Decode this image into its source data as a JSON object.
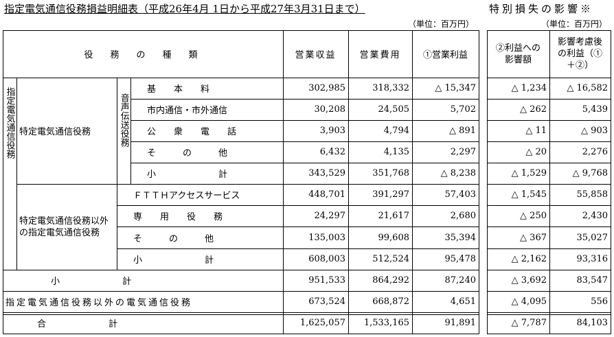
{
  "title": "指定電気通信役務損益明細表（平成26年4月 1日から平成27年3月31日まで）",
  "title_right": "特別損失の影響※",
  "unit_left": "（単位：百万円）",
  "unit_right": "（単位：百万円）",
  "headers": {
    "type": "役　務　の　種　類",
    "revenue": "営業収益",
    "expense": "営業費用",
    "profit": "①営業利益",
    "impact": "②利益への影響額",
    "after": "影響考慮後の利益（①＋②）"
  },
  "labels": {
    "left_group": "指定電気通信役務",
    "group1": "特定電気通信役務",
    "group2": "特定電気通信役務以外の指定電気通信役務",
    "voice": "音声伝送役務"
  },
  "rows": [
    {
      "label": "基　　本　　料",
      "revenue": "302,985",
      "expense": "318,332",
      "profit": "△ 15,347",
      "impact": "△ 1,234",
      "after": "△ 16,582"
    },
    {
      "label": "市内通信・市外通信",
      "revenue": "30,208",
      "expense": "24,505",
      "profit": "5,702",
      "impact": "△ 262",
      "after": "5,439"
    },
    {
      "label": "公　　衆　　電　　話",
      "revenue": "3,903",
      "expense": "4,794",
      "profit": "△ 891",
      "impact": "△ 11",
      "after": "△ 903"
    },
    {
      "label": "そ　　　の　　　他",
      "revenue": "6,432",
      "expense": "4,135",
      "profit": "2,297",
      "impact": "△ 20",
      "after": "2,276"
    },
    {
      "label": "小　　　　　　　計",
      "revenue": "343,529",
      "expense": "351,768",
      "profit": "△ 8,238",
      "impact": "△ 1,529",
      "after": "△ 9,768"
    },
    {
      "label": "ＦＴＴＨアクセスサービス",
      "revenue": "448,701",
      "expense": "391,297",
      "profit": "57,403",
      "impact": "△ 1,545",
      "after": "55,858"
    },
    {
      "label": "専　　用　　役　　務",
      "revenue": "24,297",
      "expense": "21,617",
      "profit": "2,680",
      "impact": "△ 250",
      "after": "2,430"
    },
    {
      "label": "そ　　　の　　　他",
      "revenue": "135,003",
      "expense": "99,608",
      "profit": "35,394",
      "impact": "△ 367",
      "after": "35,027"
    },
    {
      "label": "小　　　　　　　計",
      "revenue": "608,003",
      "expense": "512,524",
      "profit": "95,478",
      "impact": "△ 2,162",
      "after": "93,316"
    },
    {
      "label": "小　　　　　　　計",
      "revenue": "951,533",
      "expense": "864,292",
      "profit": "87,240",
      "impact": "△ 3,692",
      "after": "83,547"
    },
    {
      "label": "指定電気通信役務以外の電気通信役務",
      "revenue": "673,524",
      "expense": "668,872",
      "profit": "4,651",
      "impact": "△ 4,095",
      "after": "556"
    },
    {
      "label": "合　　　　　　　計",
      "revenue": "1,625,057",
      "expense": "1,533,165",
      "profit": "91,891",
      "impact": "△ 7,787",
      "after": "84,103"
    }
  ]
}
